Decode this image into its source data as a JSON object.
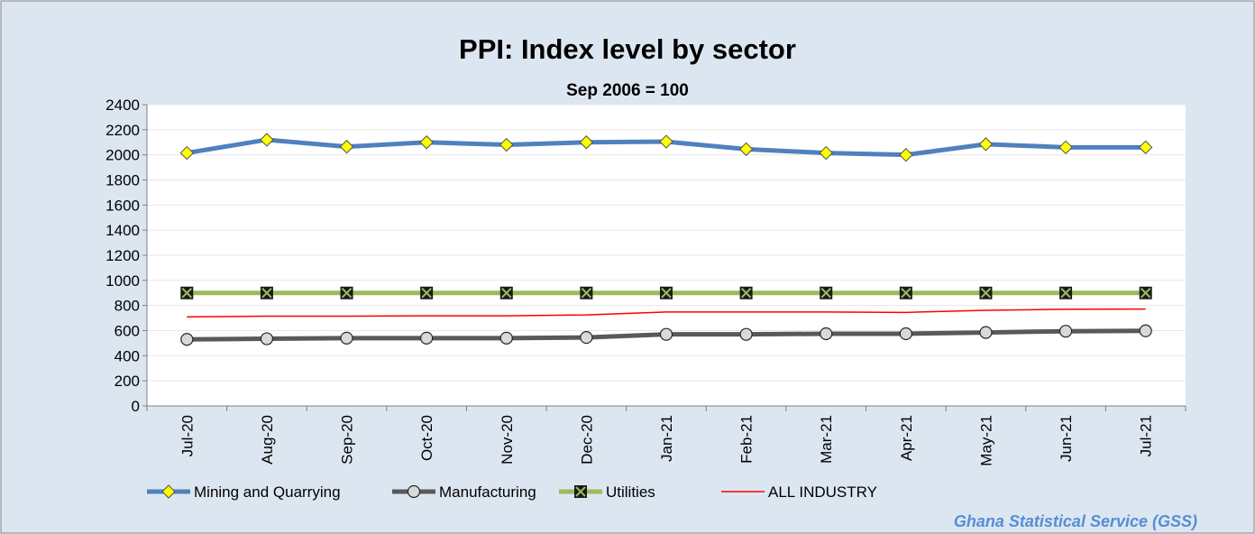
{
  "chart_data": {
    "type": "line",
    "title": "PPI:  Index level by sector",
    "subtitle": "Sep 2006 = 100",
    "categories": [
      "Jul-20",
      "Aug-20",
      "Sep-20",
      "Oct-20",
      "Nov-20",
      "Dec-20",
      "Jan-21",
      "Feb-21",
      "Mar-21",
      "Apr-21",
      "May-21",
      "Jun-21",
      "Jul-21"
    ],
    "series": [
      {
        "name": "Mining and Quarrying",
        "color": "#4f81bd",
        "marker": "diamond",
        "values": [
          2015,
          2120,
          2065,
          2100,
          2080,
          2100,
          2105,
          2045,
          2015,
          2000,
          2085,
          2060,
          2060
        ]
      },
      {
        "name": "Manufacturing",
        "color": "#595959",
        "marker": "circle",
        "values": [
          530,
          535,
          540,
          540,
          540,
          545,
          570,
          570,
          575,
          575,
          585,
          595,
          598
        ]
      },
      {
        "name": "Utilities",
        "color": "#9bbb59",
        "marker": "square",
        "values": [
          900,
          900,
          900,
          900,
          900,
          900,
          900,
          900,
          900,
          900,
          900,
          900,
          900
        ]
      },
      {
        "name": "ALL INDUSTRY",
        "color": "#ff0000",
        "marker": "none",
        "values": [
          710,
          715,
          715,
          718,
          718,
          725,
          748,
          748,
          748,
          745,
          762,
          770,
          772
        ]
      }
    ],
    "ylim": [
      0,
      2400
    ],
    "yticks": [
      0,
      200,
      400,
      600,
      800,
      1000,
      1200,
      1400,
      1600,
      1800,
      2000,
      2200,
      2400
    ],
    "grid": true,
    "legend": "bottom",
    "source": "Ghana Statistical Service (GSS)"
  }
}
